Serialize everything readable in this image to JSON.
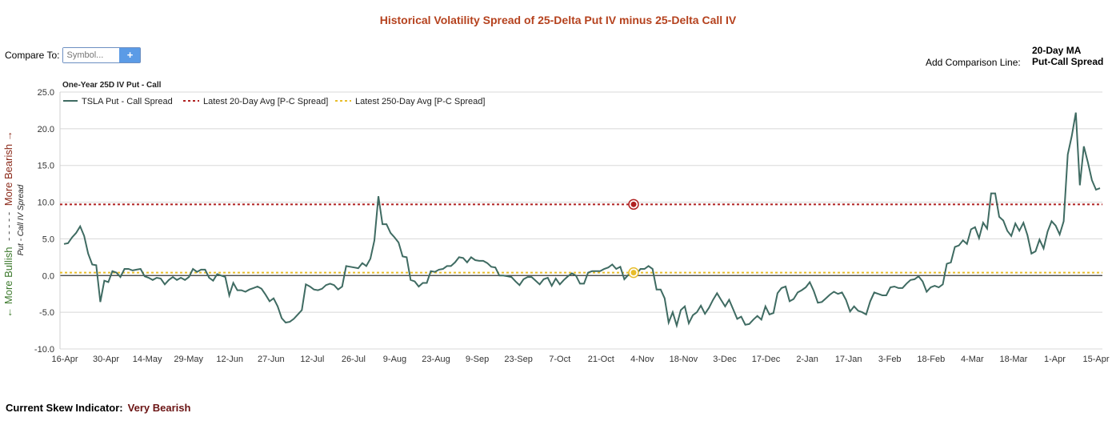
{
  "header": {
    "title": "Historical Volatility Spread of 25-Delta Put IV minus 25-Delta Call IV"
  },
  "compare": {
    "label": "Compare To:",
    "placeholder": "Symbol...",
    "add_symbol": "+"
  },
  "comparison_line": {
    "label": "Add Comparison Line:",
    "options": [
      "20-Day MA",
      "Put-Call Spread"
    ]
  },
  "footer": {
    "skew_label": "Current Skew Indicator:",
    "skew_value": "Very Bearish"
  },
  "colors": {
    "series": "#3f6b62",
    "avg20": "#b02222",
    "avg250": "#e8bd2a",
    "bullish": "#3d7a2d",
    "bearish": "#8b2a1a"
  },
  "chart_data": {
    "type": "line",
    "title": "One-Year 25D IV Put - Call",
    "ylabel": "Put - Call IV Spread",
    "y_side_labels": {
      "bullish": "← More Bullish",
      "dashes": "- - - - -",
      "bearish": "More Bearish →"
    },
    "ylim": [
      -10,
      25
    ],
    "yticks": [
      "25.0",
      "20.0",
      "15.0",
      "10.0",
      "5.0",
      "0.0",
      "-5.0",
      "-10.0"
    ],
    "xticks": [
      "16-Apr",
      "30-Apr",
      "14-May",
      "29-May",
      "12-Jun",
      "27-Jun",
      "12-Jul",
      "26-Jul",
      "9-Aug",
      "23-Aug",
      "9-Sep",
      "23-Sep",
      "7-Oct",
      "21-Oct",
      "4-Nov",
      "18-Nov",
      "3-Dec",
      "17-Dec",
      "2-Jan",
      "17-Jan",
      "3-Feb",
      "18-Feb",
      "4-Mar",
      "18-Mar",
      "1-Apr",
      "15-Apr"
    ],
    "grid": true,
    "legend": "top-left",
    "series": [
      {
        "name": "TSLA Put - Call Spread",
        "values": [
          4.3,
          4.4,
          5.2,
          5.8,
          6.7,
          5.4,
          3.0,
          1.5,
          1.4,
          -3.6,
          -0.7,
          -0.9,
          0.6,
          0.4,
          -0.2,
          0.9,
          0.9,
          0.7,
          0.8,
          0.9,
          -0.1,
          -0.3,
          -0.6,
          -0.3,
          -0.4,
          -1.2,
          -0.6,
          -0.2,
          -0.6,
          -0.3,
          -0.6,
          -0.2,
          0.9,
          0.5,
          0.8,
          0.8,
          -0.3,
          -0.7,
          0.2,
          0.0,
          -0.2,
          -2.7,
          -1.0,
          -2.0,
          -2.0,
          -2.2,
          -1.9,
          -1.7,
          -1.5,
          -1.8,
          -2.6,
          -3.5,
          -3.1,
          -4.2,
          -5.8,
          -6.4,
          -6.3,
          -5.9,
          -5.3,
          -4.7,
          -1.2,
          -1.5,
          -1.9,
          -2.0,
          -1.8,
          -1.3,
          -1.1,
          -1.3,
          -1.9,
          -1.5,
          1.3,
          1.2,
          1.1,
          1.0,
          1.7,
          1.3,
          2.3,
          4.8,
          10.8,
          7.0,
          7.0,
          5.8,
          5.2,
          4.5,
          2.6,
          2.5,
          -0.6,
          -0.8,
          -1.5,
          -1.0,
          -1.0,
          0.6,
          0.5,
          0.8,
          0.9,
          1.3,
          1.3,
          1.8,
          2.5,
          2.4,
          1.8,
          2.5,
          2.1,
          2.0,
          2.0,
          1.7,
          1.2,
          1.1,
          0.0,
          0.0,
          -0.1,
          -0.2,
          -0.8,
          -1.3,
          -0.5,
          -0.2,
          -0.2,
          -0.7,
          -1.2,
          -0.5,
          -0.3,
          -1.4,
          -0.4,
          -1.2,
          -0.6,
          -0.1,
          0.3,
          0.0,
          -1.1,
          -1.1,
          0.4,
          0.6,
          0.6,
          0.6,
          0.9,
          1.1,
          1.5,
          0.9,
          1.2,
          -0.5,
          0.1,
          0.5,
          0.2,
          0.9,
          0.9,
          1.3,
          0.9,
          -1.9,
          -1.9,
          -3.1,
          -6.4,
          -5.0,
          -6.8,
          -4.7,
          -4.2,
          -6.5,
          -5.4,
          -5.0,
          -4.1,
          -5.2,
          -4.4,
          -3.3,
          -2.4,
          -3.3,
          -4.2,
          -3.3,
          -4.6,
          -5.9,
          -5.6,
          -6.7,
          -6.6,
          -6.0,
          -5.5,
          -6.0,
          -4.2,
          -5.3,
          -5.1,
          -2.4,
          -1.7,
          -1.5,
          -3.5,
          -3.2,
          -2.3,
          -2.0,
          -1.6,
          -0.9,
          -2.1,
          -3.7,
          -3.6,
          -3.1,
          -2.6,
          -2.2,
          -2.5,
          -2.3,
          -3.3,
          -4.9,
          -4.2,
          -4.8,
          -5.0,
          -5.3,
          -3.5,
          -2.3,
          -2.5,
          -2.7,
          -2.7,
          -1.6,
          -1.5,
          -1.7,
          -1.7,
          -1.1,
          -0.6,
          -0.5,
          -0.1,
          -0.8,
          -2.2,
          -1.6,
          -1.4,
          -1.6,
          -1.2,
          1.6,
          1.8,
          3.9,
          4.1,
          4.8,
          4.3,
          6.3,
          6.6,
          5.1,
          7.2,
          6.4,
          11.2,
          11.2,
          8.0,
          7.5,
          6.1,
          5.4,
          7.1,
          6.1,
          7.2,
          5.5,
          3.0,
          3.3,
          4.9,
          3.7,
          6.0,
          7.4,
          6.8,
          5.6,
          7.4,
          16.5,
          19.0,
          22.2,
          12.3,
          17.6,
          15.4,
          13.0,
          11.7,
          11.9
        ]
      },
      {
        "name": "Latest 20-Day Avg [P-C Spread]",
        "value": 9.7
      },
      {
        "name": "Latest 250-Day Avg [P-C Spread]",
        "value": 0.4
      }
    ]
  }
}
